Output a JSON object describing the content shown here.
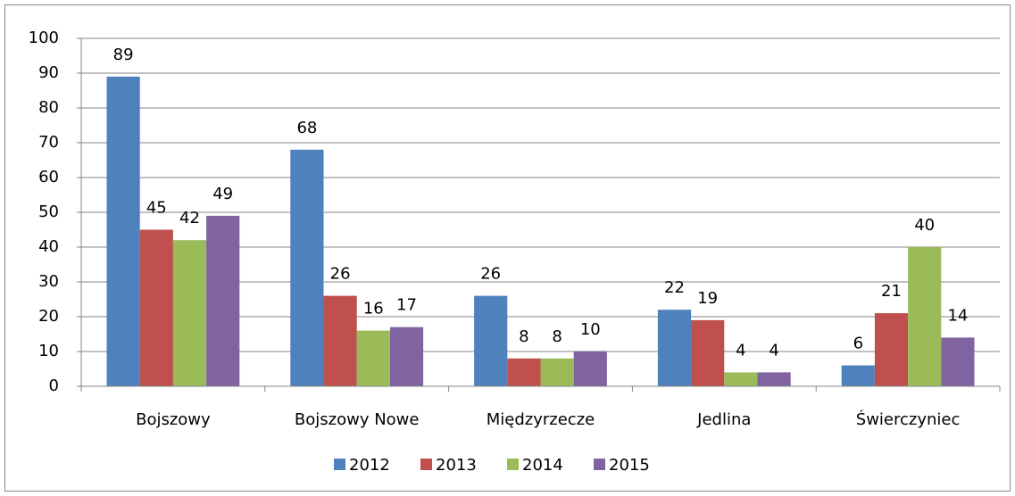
{
  "chart_data": {
    "type": "bar",
    "categories": [
      "Bojszowy",
      "Bojszowy Nowe",
      "Międzyrzecze",
      "Jedlina",
      "Świerczyniec"
    ],
    "series": [
      {
        "name": "2012",
        "color": "#4F81BD",
        "values": [
          89,
          68,
          26,
          22,
          6
        ]
      },
      {
        "name": "2013",
        "color": "#C0504D",
        "values": [
          45,
          26,
          8,
          19,
          21
        ]
      },
      {
        "name": "2014",
        "color": "#9BBB59",
        "values": [
          42,
          16,
          8,
          4,
          40
        ]
      },
      {
        "name": "2015",
        "color": "#8064A2",
        "values": [
          49,
          17,
          10,
          4,
          14
        ]
      }
    ],
    "ylim": [
      0,
      100
    ],
    "yticks": [
      0,
      10,
      20,
      30,
      40,
      50,
      60,
      70,
      80,
      90,
      100
    ],
    "grid": true,
    "legend": "bottom"
  }
}
